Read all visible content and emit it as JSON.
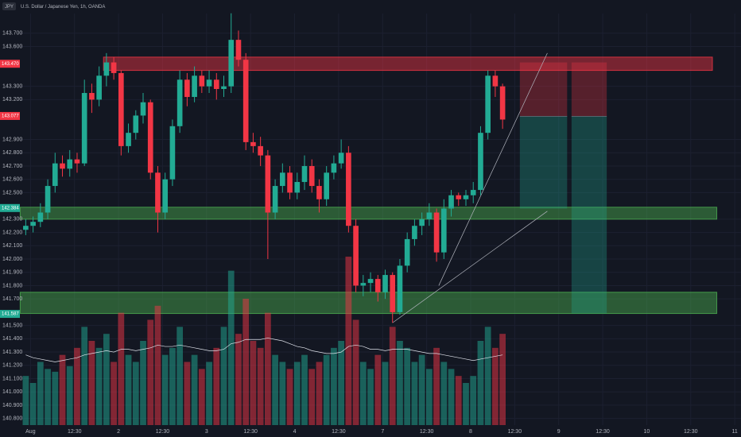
{
  "chart_data": {
    "type": "candlestick",
    "symbol": "JPY",
    "title": "U.S. Dollar / Japanese Yen, 1h, OANDA",
    "up_color": "#22ab94",
    "down_color": "#f23645",
    "ylim": [
      140.75,
      143.92
    ],
    "yticks": [
      {
        "value": 143.7,
        "label": "143.700"
      },
      {
        "value": 143.6,
        "label": "143.600"
      },
      {
        "value": 143.3,
        "label": "143.300"
      },
      {
        "value": 143.2,
        "label": "143.200"
      },
      {
        "value": 142.9,
        "label": "142.900"
      },
      {
        "value": 142.8,
        "label": "142.800"
      },
      {
        "value": 142.7,
        "label": "142.700"
      },
      {
        "value": 142.6,
        "label": "142.600"
      },
      {
        "value": 142.5,
        "label": "142.500"
      },
      {
        "value": 142.3,
        "label": "142.300"
      },
      {
        "value": 142.2,
        "label": "142.200"
      },
      {
        "value": 142.1,
        "label": "142.100"
      },
      {
        "value": 142.0,
        "label": "142.000"
      },
      {
        "value": 141.9,
        "label": "141.900"
      },
      {
        "value": 141.8,
        "label": "141.800"
      },
      {
        "value": 141.7,
        "label": "141.700"
      },
      {
        "value": 141.5,
        "label": "141.500"
      },
      {
        "value": 141.4,
        "label": "141.400"
      },
      {
        "value": 141.3,
        "label": "141.300"
      },
      {
        "value": 141.2,
        "label": "141.200"
      },
      {
        "value": 141.1,
        "label": "141.100"
      },
      {
        "value": 141.0,
        "label": "141.000"
      },
      {
        "value": 140.9,
        "label": "140.900"
      },
      {
        "value": 140.8,
        "label": "140.800"
      }
    ],
    "xlim": [
      -0.8,
      97.5
    ],
    "xticks": [
      {
        "value": 0.65,
        "label": "Aug"
      },
      {
        "value": 6.65,
        "label": "12:30"
      },
      {
        "value": 12.65,
        "label": "2"
      },
      {
        "value": 18.65,
        "label": "12:30"
      },
      {
        "value": 24.65,
        "label": "3"
      },
      {
        "value": 30.65,
        "label": "12:30"
      },
      {
        "value": 36.65,
        "label": "4"
      },
      {
        "value": 42.65,
        "label": "12:30"
      },
      {
        "value": 48.65,
        "label": "7"
      },
      {
        "value": 54.65,
        "label": "12:30"
      },
      {
        "value": 60.65,
        "label": "8"
      },
      {
        "value": 66.65,
        "label": "12:30"
      },
      {
        "value": 72.65,
        "label": "9"
      },
      {
        "value": 78.65,
        "label": "12:30"
      },
      {
        "value": 84.65,
        "label": "10"
      },
      {
        "value": 90.65,
        "label": "12:30"
      },
      {
        "value": 96.65,
        "label": "11"
      }
    ],
    "grid": true,
    "candles": [
      [
        142.22,
        142.3,
        142.18,
        142.25
      ],
      [
        142.25,
        142.32,
        142.2,
        142.28
      ],
      [
        142.28,
        142.42,
        142.24,
        142.35
      ],
      [
        142.35,
        142.6,
        142.3,
        142.55
      ],
      [
        142.55,
        142.8,
        142.5,
        142.72
      ],
      [
        142.72,
        142.78,
        142.62,
        142.68
      ],
      [
        142.68,
        142.82,
        142.62,
        142.75
      ],
      [
        142.75,
        142.8,
        142.65,
        142.72
      ],
      [
        142.72,
        143.35,
        142.7,
        143.25
      ],
      [
        143.25,
        143.32,
        143.1,
        143.2
      ],
      [
        143.2,
        143.45,
        143.15,
        143.38
      ],
      [
        143.38,
        143.55,
        143.3,
        143.48
      ],
      [
        143.48,
        143.52,
        143.35,
        143.4
      ],
      [
        143.4,
        143.42,
        142.78,
        142.85
      ],
      [
        142.85,
        143.02,
        142.8,
        142.95
      ],
      [
        142.95,
        143.12,
        142.9,
        143.08
      ],
      [
        143.08,
        143.25,
        143.02,
        143.18
      ],
      [
        143.18,
        143.2,
        142.6,
        142.65
      ],
      [
        142.65,
        142.7,
        142.2,
        142.35
      ],
      [
        142.35,
        142.65,
        142.3,
        142.6
      ],
      [
        142.6,
        143.05,
        142.55,
        143.0
      ],
      [
        143.0,
        143.42,
        142.95,
        143.35
      ],
      [
        143.35,
        143.4,
        143.15,
        143.22
      ],
      [
        143.22,
        143.45,
        143.18,
        143.38
      ],
      [
        143.38,
        143.42,
        143.25,
        143.3
      ],
      [
        143.3,
        143.42,
        143.25,
        143.35
      ],
      [
        143.35,
        143.4,
        143.2,
        143.28
      ],
      [
        143.28,
        143.38,
        143.22,
        143.3
      ],
      [
        143.3,
        143.85,
        143.25,
        143.65
      ],
      [
        143.65,
        143.72,
        143.45,
        143.5
      ],
      [
        143.5,
        143.55,
        142.82,
        142.88
      ],
      [
        142.88,
        142.95,
        142.8,
        142.85
      ],
      [
        142.85,
        142.92,
        142.7,
        142.78
      ],
      [
        142.78,
        142.82,
        142.0,
        142.35
      ],
      [
        142.35,
        142.6,
        142.3,
        142.55
      ],
      [
        142.55,
        142.72,
        142.5,
        142.65
      ],
      [
        142.65,
        142.7,
        142.45,
        142.5
      ],
      [
        142.5,
        142.65,
        142.45,
        142.58
      ],
      [
        142.58,
        142.78,
        142.52,
        142.7
      ],
      [
        142.7,
        142.75,
        142.5,
        142.55
      ],
      [
        142.55,
        142.6,
        142.35,
        142.45
      ],
      [
        142.45,
        142.7,
        142.4,
        142.65
      ],
      [
        142.65,
        142.78,
        142.6,
        142.72
      ],
      [
        142.72,
        142.9,
        142.68,
        142.8
      ],
      [
        142.8,
        142.85,
        142.2,
        142.25
      ],
      [
        142.25,
        142.3,
        141.75,
        141.8
      ],
      [
        141.8,
        141.88,
        141.72,
        141.82
      ],
      [
        141.82,
        141.9,
        141.75,
        141.85
      ],
      [
        141.85,
        141.88,
        141.68,
        141.75
      ],
      [
        141.75,
        141.92,
        141.7,
        141.88
      ],
      [
        141.88,
        141.9,
        141.52,
        141.6
      ],
      [
        141.6,
        142.0,
        141.58,
        141.95
      ],
      [
        141.95,
        142.2,
        141.9,
        142.15
      ],
      [
        142.15,
        142.3,
        142.1,
        142.25
      ],
      [
        142.25,
        142.35,
        142.18,
        142.3
      ],
      [
        142.3,
        142.42,
        142.25,
        142.35
      ],
      [
        142.35,
        142.38,
        141.98,
        142.05
      ],
      [
        142.05,
        142.45,
        142.0,
        142.38
      ],
      [
        142.38,
        142.52,
        142.32,
        142.48
      ],
      [
        142.48,
        142.5,
        142.4,
        142.45
      ],
      [
        142.45,
        142.52,
        142.4,
        142.48
      ],
      [
        142.48,
        142.58,
        142.42,
        142.52
      ],
      [
        142.52,
        143.0,
        142.48,
        142.95
      ],
      [
        142.95,
        143.42,
        142.9,
        143.38
      ],
      [
        143.38,
        143.42,
        143.22,
        143.3
      ],
      [
        143.3,
        143.32,
        142.98,
        143.05
      ]
    ],
    "volumes": [
      35,
      30,
      45,
      40,
      38,
      50,
      42,
      55,
      70,
      60,
      55,
      65,
      45,
      80,
      50,
      45,
      60,
      75,
      85,
      50,
      55,
      70,
      45,
      50,
      40,
      45,
      55,
      70,
      110,
      65,
      90,
      60,
      55,
      80,
      50,
      45,
      40,
      45,
      50,
      40,
      45,
      50,
      55,
      60,
      120,
      75,
      45,
      40,
      50,
      45,
      70,
      60,
      55,
      45,
      50,
      40,
      55,
      45,
      40,
      35,
      30,
      35,
      60,
      70,
      55,
      65
    ],
    "volume_ma": [
      50,
      48,
      47,
      46,
      45,
      46,
      47,
      48,
      50,
      51,
      52,
      53,
      52,
      54,
      54,
      53,
      54,
      55,
      57,
      56,
      56,
      57,
      56,
      55,
      54,
      53,
      53,
      54,
      58,
      59,
      61,
      61,
      61,
      62,
      61,
      60,
      58,
      56,
      55,
      53,
      52,
      51,
      51,
      52,
      56,
      57,
      56,
      54,
      54,
      53,
      54,
      54,
      54,
      53,
      52,
      51,
      51,
      50,
      49,
      48,
      47,
      46,
      47,
      48,
      49,
      50
    ],
    "volume_max": 300,
    "zones": [
      {
        "top": 143.52,
        "bottom": 143.42,
        "start": 10.6,
        "end": 93.6,
        "color": "#f23645"
      },
      {
        "top": 142.39,
        "bottom": 142.3,
        "start": -0.76,
        "end": 94.2,
        "color": "#4caf50"
      },
      {
        "top": 141.75,
        "bottom": 141.59,
        "start": -0.76,
        "end": 94.2,
        "color": "#4caf50"
      }
    ],
    "positions": [
      {
        "start": 67.35,
        "end": 73.8,
        "stop": 143.48,
        "entry": 143.075,
        "target": 142.38
      },
      {
        "start": 74.4,
        "end": 79.2,
        "stop": 143.48,
        "entry": 143.075,
        "target": 141.59
      }
    ],
    "trend_lines": [
      {
        "x": [
          50,
          71.1
        ],
        "y": [
          141.52,
          142.36
        ]
      },
      {
        "x": [
          56.3,
          71.1
        ],
        "y": [
          141.8,
          143.55
        ]
      }
    ],
    "price_labels": [
      {
        "value": 143.47,
        "label": "143.470",
        "color": "#f23645"
      },
      {
        "value": 143.077,
        "label": "143.077",
        "color": "#f23645"
      },
      {
        "value": 142.384,
        "label": "142.384",
        "color": "#22ab94"
      },
      {
        "value": 141.587,
        "label": "141.587",
        "color": "#22ab94"
      }
    ]
  }
}
